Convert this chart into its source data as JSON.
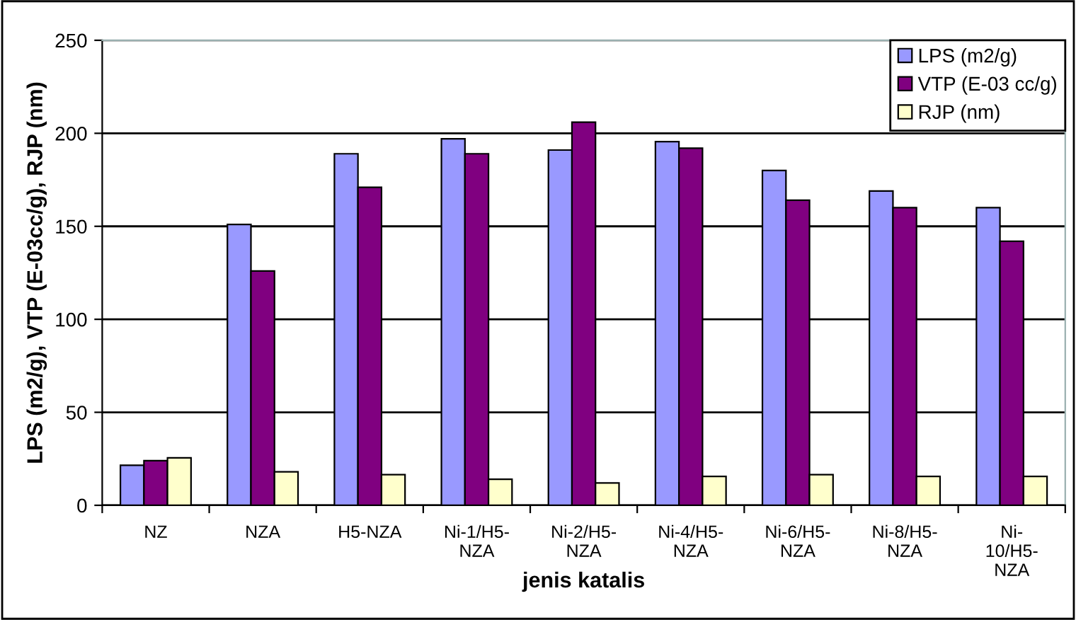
{
  "chart_data": {
    "type": "bar",
    "categories": [
      "NZ",
      "NZA",
      "H5-NZA",
      "Ni-1/H5-\nNZA",
      "Ni-2/H5-\nNZA",
      "Ni-4/H5-\nNZA",
      "Ni-6/H5-\nNZA",
      "Ni-8/H5-\nNZA",
      "Ni-\n10/H5-\nNZA"
    ],
    "series": [
      {
        "name": "LPS (m2/g)",
        "color": "#9999ff",
        "values": [
          21.5,
          151,
          189,
          197,
          191,
          195.5,
          180,
          169,
          160
        ]
      },
      {
        "name": "VTP (E-03 cc/g)",
        "color": "#800080",
        "values": [
          24,
          126,
          171,
          189,
          206,
          192,
          164,
          160,
          142
        ]
      },
      {
        "name": "RJP (nm)",
        "color": "#ffffcc",
        "values": [
          25.5,
          18,
          16.5,
          14,
          12,
          15.5,
          16.5,
          15.5,
          15.5
        ]
      }
    ],
    "xlabel": "jenis katalis",
    "ylabel": "LPS (m2/g), VTP (E-03cc/g), RJP (nm)",
    "ylim": [
      0,
      250
    ],
    "yticks": [
      0,
      50,
      100,
      150,
      200,
      250
    ],
    "grid": "y",
    "legend": "top right"
  }
}
